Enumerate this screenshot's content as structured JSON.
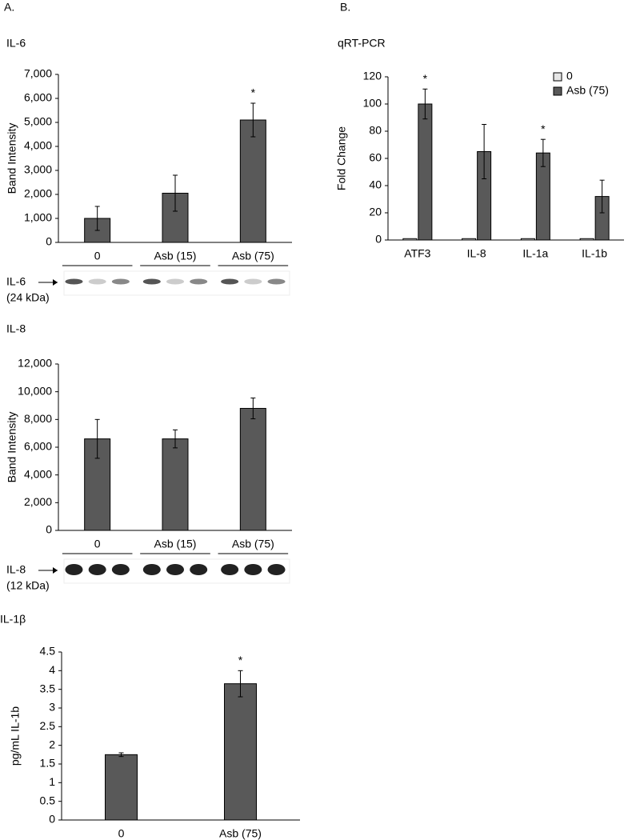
{
  "panels": [
    "A.",
    "B."
  ],
  "chart_data": [
    {
      "type": "bar",
      "title": "IL-6",
      "y_label": "Band Intensity",
      "categories": [
        "0",
        "Asb (15)",
        "Asb (75)"
      ],
      "values": [
        1000,
        2050,
        5100
      ],
      "errors": [
        500,
        750,
        700
      ],
      "significance": [
        null,
        null,
        "*"
      ],
      "color": "#595959",
      "ylim": [
        0,
        7000
      ],
      "yticks": [
        0,
        {
          "value": 1000,
          "label": "1,000"
        },
        {
          "value": 2000,
          "label": "2,000"
        },
        {
          "value": 3000,
          "label": "3,000"
        },
        {
          "value": 4000,
          "label": "4,000"
        },
        {
          "value": 5000,
          "label": "5,000"
        },
        {
          "value": 6000,
          "label": "6,000"
        },
        {
          "value": 7000,
          "label": "7,000"
        }
      ],
      "blot": {
        "label": "IL-6",
        "size": "(24 kDa)"
      }
    },
    {
      "type": "bar",
      "title": "IL-8",
      "y_label": "Band Intensity",
      "categories": [
        "0",
        "Asb (15)",
        "Asb (75)"
      ],
      "values": [
        6600,
        6600,
        8800
      ],
      "errors": [
        1400,
        650,
        750
      ],
      "significance": [
        null,
        null,
        null
      ],
      "color": "#595959",
      "ylim": [
        0,
        12000
      ],
      "yticks": [
        0,
        {
          "value": 2000,
          "label": "2,000"
        },
        {
          "value": 4000,
          "label": "4,000"
        },
        {
          "value": 6000,
          "label": "6,000"
        },
        {
          "value": 8000,
          "label": "8,000"
        },
        {
          "value": 10000,
          "label": "10,000"
        },
        {
          "value": 12000,
          "label": "12,000"
        }
      ],
      "blot": {
        "label": "IL-8",
        "size": "(12 kDa)"
      }
    },
    {
      "type": "bar",
      "title": "IL-1β",
      "y_label": "pg/mL IL-1b",
      "categories": [
        "0",
        "Asb (75)"
      ],
      "values": [
        1.75,
        3.65
      ],
      "errors": [
        0.05,
        0.35
      ],
      "significance": [
        null,
        "*"
      ],
      "color": "#595959",
      "ylim": [
        0,
        4.5
      ],
      "yticks": [
        0,
        0.5,
        1,
        1.5,
        2,
        2.5,
        3,
        3.5,
        4,
        4.5
      ]
    },
    {
      "type": "bar",
      "title": "qRT-PCR",
      "y_label": "Fold Change",
      "categories": [
        "ATF3",
        "IL-8",
        "IL-1a",
        "IL-1b"
      ],
      "series": [
        {
          "name": "0",
          "color": "#e6e6e6",
          "values": [
            1,
            1,
            1,
            1
          ],
          "errors": [
            0,
            0,
            0,
            0
          ],
          "significance": [
            null,
            null,
            null,
            null
          ]
        },
        {
          "name": "Asb (75)",
          "color": "#595959",
          "values": [
            100,
            65,
            64,
            32
          ],
          "errors": [
            11,
            20,
            10,
            12
          ],
          "significance": [
            "*",
            null,
            "*",
            null
          ]
        }
      ],
      "legend": "top-right",
      "ylim": [
        0,
        120
      ],
      "yticks": [
        0,
        20,
        40,
        60,
        80,
        100,
        120
      ]
    }
  ]
}
